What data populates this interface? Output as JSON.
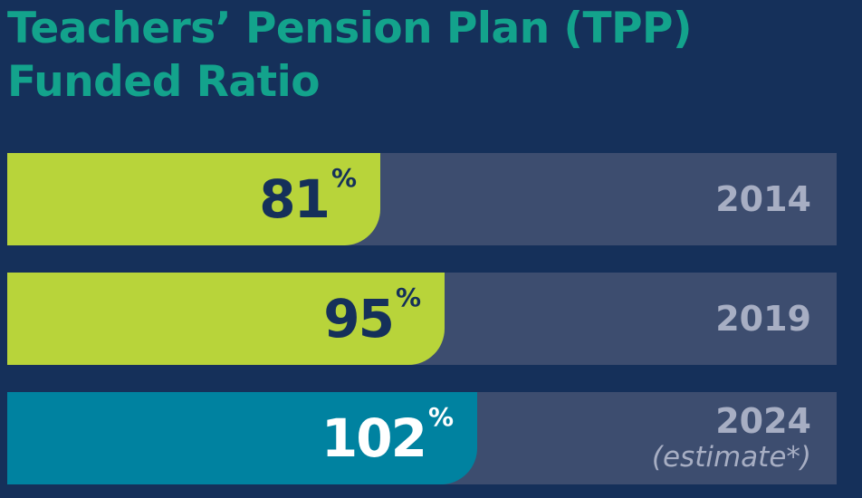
{
  "chart_data": {
    "type": "bar",
    "title": "Teachers’ Pension Plan (TPP) Funded Ratio",
    "categories": [
      "2014",
      "2019",
      "2024"
    ],
    "category_notes": [
      "",
      "",
      "(estimate*)"
    ],
    "values": [
      81,
      95,
      102
    ],
    "value_labels": [
      "81",
      "95",
      "102"
    ],
    "unit": "%",
    "colors": [
      "#b8d43a",
      "#b8d43a",
      "#0082a0"
    ],
    "value_text_colors": [
      "#15305a",
      "#15305a",
      "#ffffff"
    ],
    "track_color": "#3d4d6f",
    "ylim": [
      0,
      180
    ],
    "grid": false,
    "legend": "none"
  },
  "title_lines": [
    "Teachers’ Pension Plan (TPP)",
    "Funded Ratio"
  ]
}
